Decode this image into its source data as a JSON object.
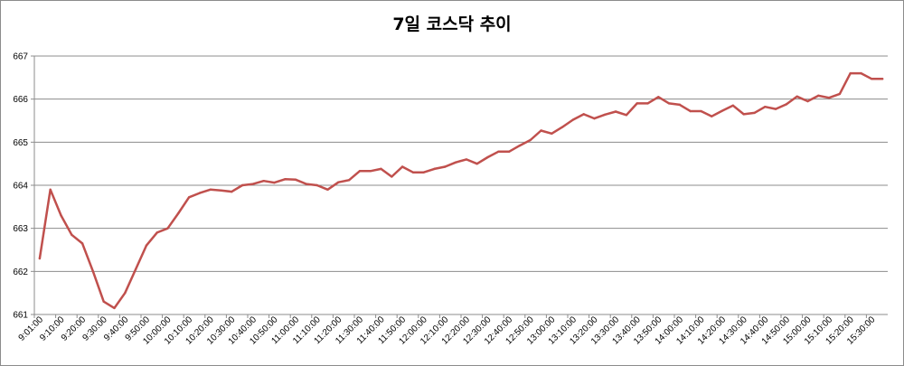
{
  "chart_data": {
    "type": "line",
    "title": "7일 코스닥 추이",
    "xlabel": "",
    "ylabel": "",
    "ylim": [
      661,
      667
    ],
    "yticks": [
      "661",
      "662",
      "663",
      "664",
      "665",
      "666",
      "667"
    ],
    "xtick_labels": [
      "9:01:00",
      "9:10:00",
      "9:20:00",
      "9:30:00",
      "9:40:00",
      "9:50:00",
      "10:00:00",
      "10:10:00",
      "10:20:00",
      "10:30:00",
      "10:40:00",
      "10:50:00",
      "11:00:00",
      "11:10:00",
      "11:20:00",
      "11:30:00",
      "11:40:00",
      "11:50:00",
      "12:00:00",
      "12:10:00",
      "12:20:00",
      "12:30:00",
      "12:40:00",
      "12:50:00",
      "13:00:00",
      "13:10:00",
      "13:20:00",
      "13:30:00",
      "13:40:00",
      "13:50:00",
      "14:00:00",
      "14:10:00",
      "14:20:00",
      "14:30:00",
      "14:40:00",
      "14:50:00",
      "15:00:00",
      "15:10:00",
      "15:20:00",
      "15:30:00"
    ],
    "grid": true,
    "legend": "none",
    "series": [
      {
        "color": "#c0504d",
        "values": [
          662.3,
          663.9,
          663.3,
          662.85,
          662.65,
          662.0,
          661.3,
          661.15,
          661.5,
          662.05,
          662.6,
          662.9,
          663.0,
          663.35,
          663.72,
          663.82,
          663.9,
          663.88,
          663.85,
          664.0,
          664.03,
          664.1,
          664.06,
          664.14,
          664.13,
          664.03,
          664.0,
          663.9,
          664.07,
          664.12,
          664.33,
          664.33,
          664.38,
          664.2,
          664.43,
          664.3,
          664.3,
          664.38,
          664.43,
          664.53,
          664.6,
          664.5,
          664.65,
          664.78,
          664.78,
          664.92,
          665.05,
          665.27,
          665.2,
          665.35,
          665.52,
          665.65,
          665.55,
          665.64,
          665.71,
          665.63,
          665.9,
          665.9,
          666.05,
          665.9,
          665.87,
          665.72,
          665.72,
          665.6,
          665.73,
          665.85,
          665.65,
          665.68,
          665.82,
          665.77,
          665.88,
          666.06,
          665.95,
          666.08,
          666.03,
          666.12,
          666.6,
          666.6,
          666.47,
          666.47
        ]
      }
    ]
  }
}
